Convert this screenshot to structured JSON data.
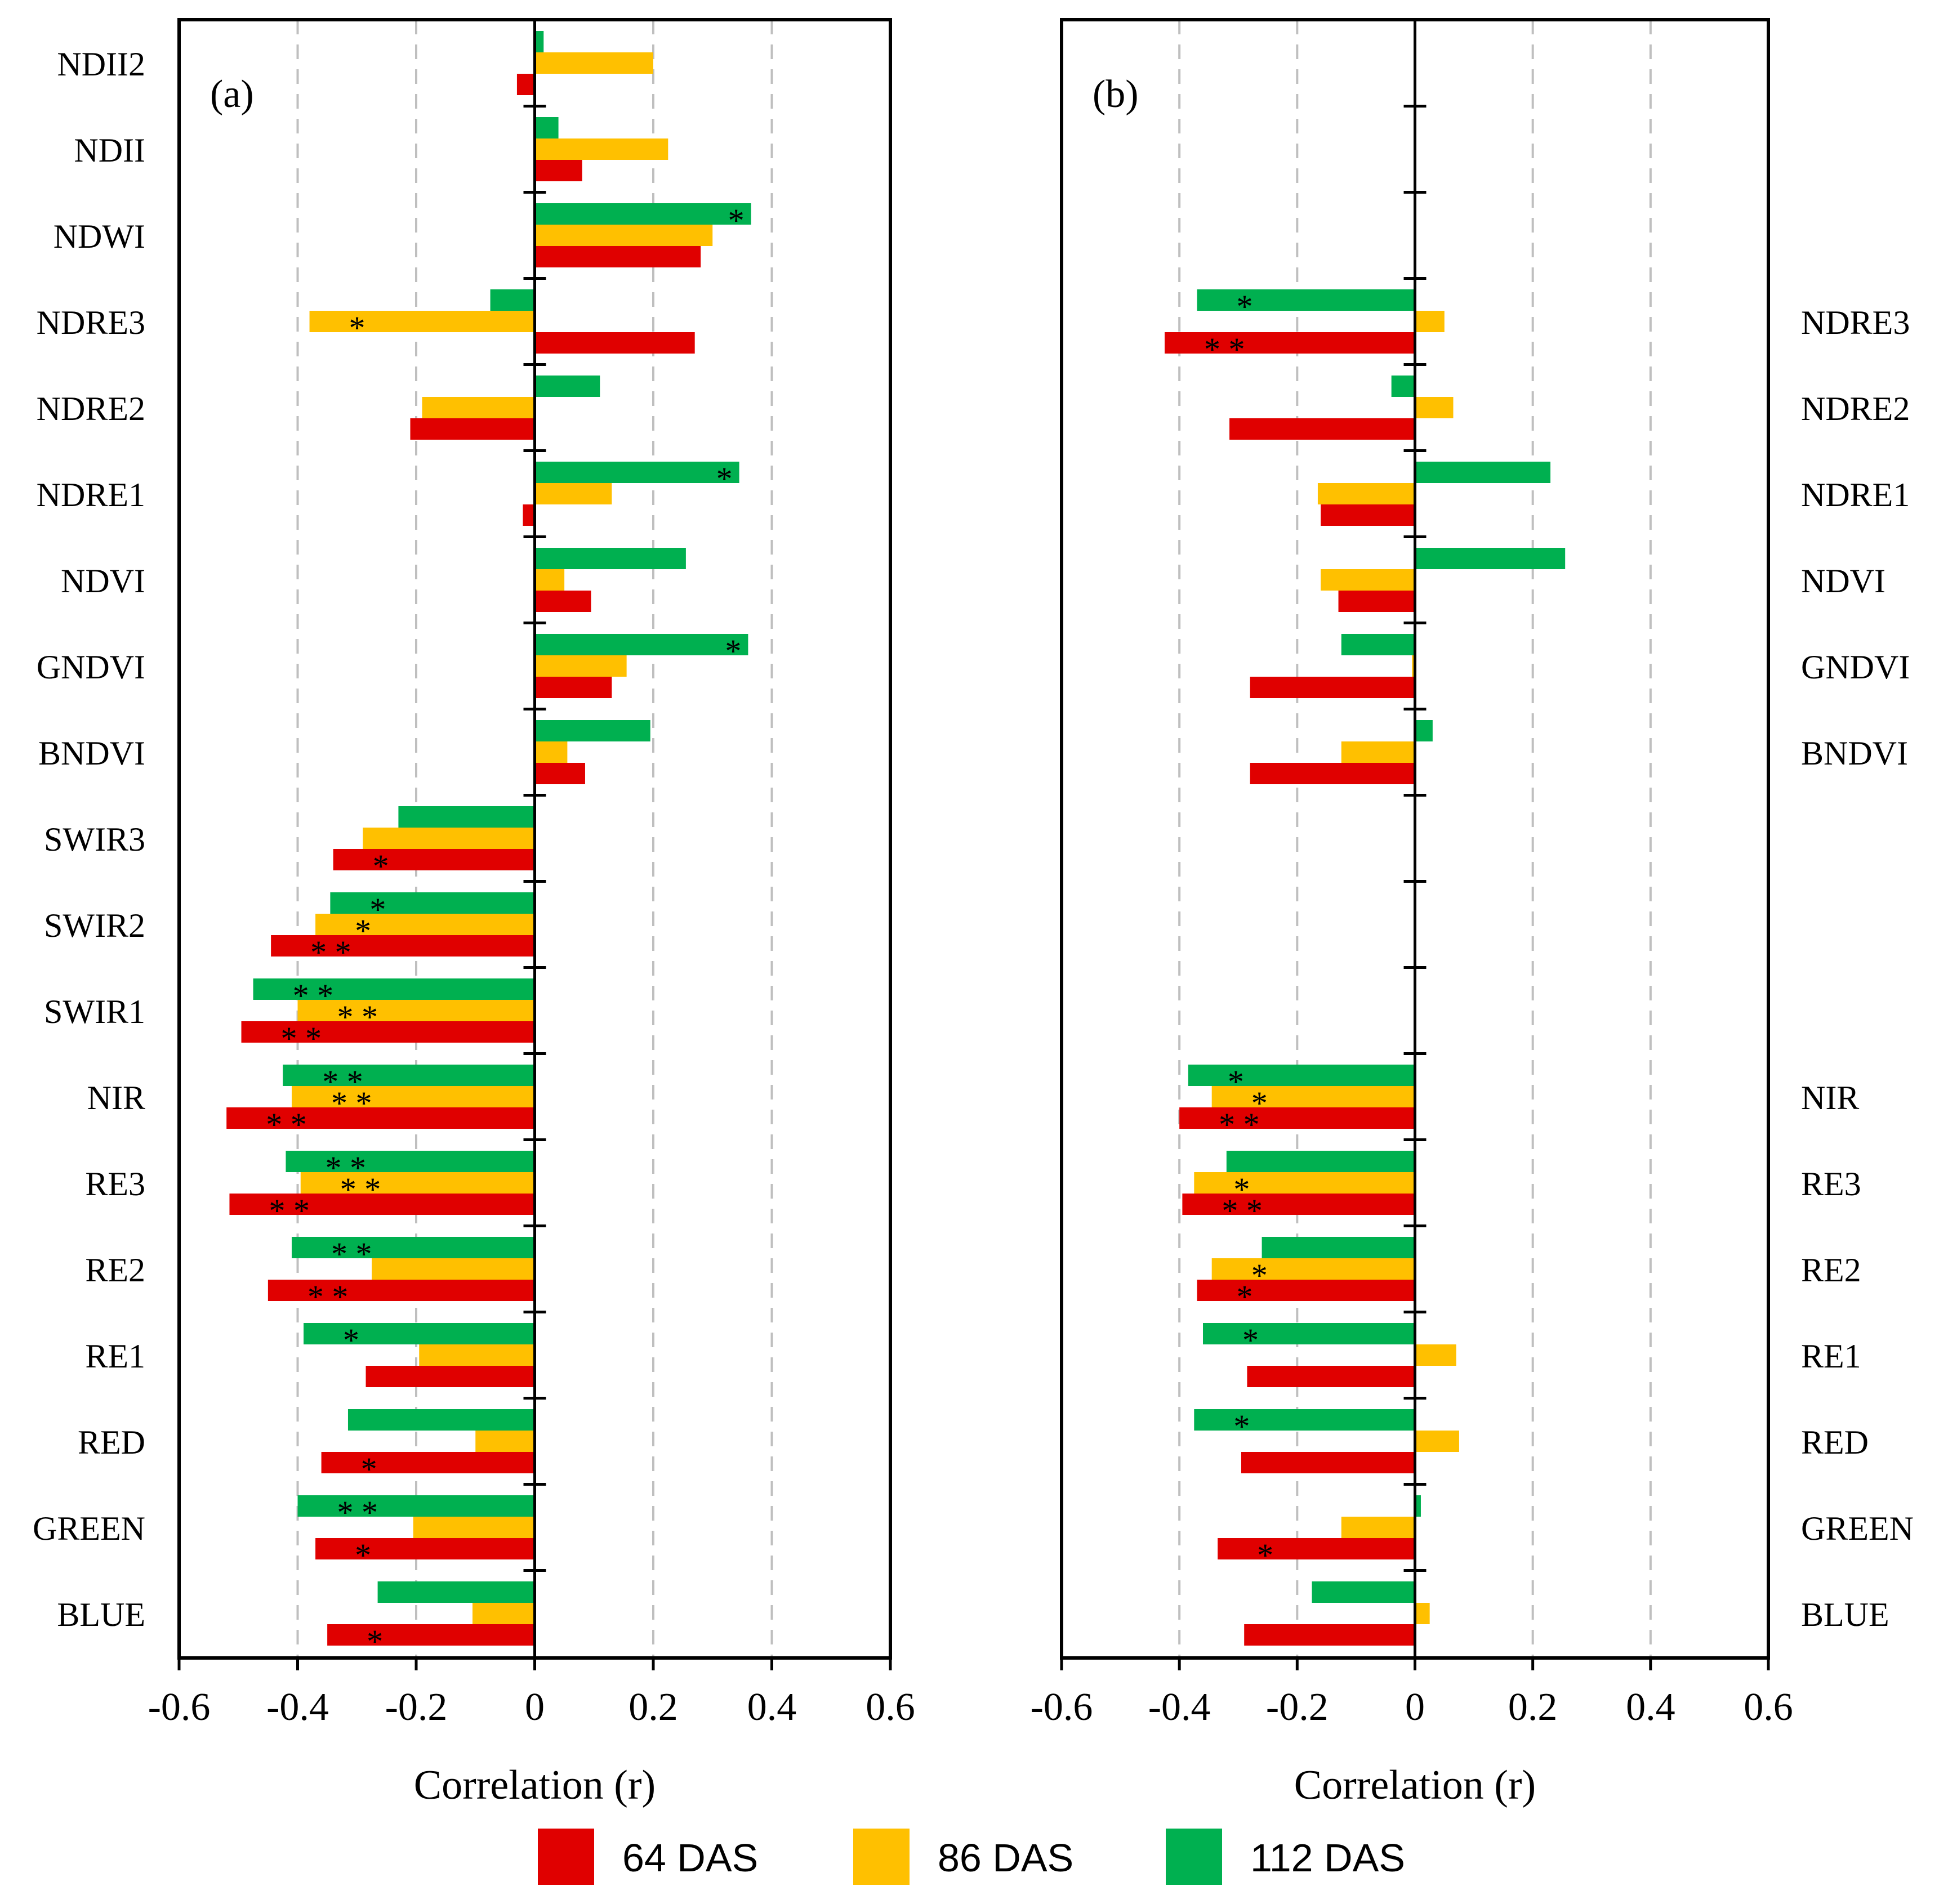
{
  "chart_data": [
    {
      "type": "bar",
      "orientation": "horizontal",
      "panel_label": "(a)",
      "xlabel": "Correlation (r)",
      "xlim": [
        -0.6,
        0.6
      ],
      "xticks": [
        "-0.6",
        "-0.4",
        "-0.2",
        "0",
        "0.2",
        "0.4",
        "0.6"
      ],
      "grid": "vertical dashed",
      "category_axis_side": "left",
      "categories": [
        "NDII2",
        "NDII",
        "NDWI",
        "NDRE3",
        "NDRE2",
        "NDRE1",
        "NDVI",
        "GNDVI",
        "BNDVI",
        "SWIR3",
        "SWIR2",
        "SWIR1",
        "NIR",
        "RE3",
        "RE2",
        "RE1",
        "RED",
        "GREEN",
        "BLUE"
      ],
      "series": [
        {
          "name": "64 DAS",
          "values": [
            -0.03,
            0.08,
            0.28,
            0.27,
            -0.21,
            -0.02,
            0.095,
            0.13,
            0.085,
            -0.34,
            -0.445,
            -0.495,
            -0.52,
            -0.515,
            -0.45,
            -0.285,
            -0.36,
            -0.37,
            -0.35
          ],
          "significance": [
            "",
            "",
            "",
            "",
            "",
            "",
            "",
            "",
            "",
            "*",
            "**",
            "**",
            "**",
            "**",
            "**",
            "",
            "*",
            "*",
            "*"
          ]
        },
        {
          "name": "86 DAS",
          "values": [
            0.2,
            0.225,
            0.3,
            -0.38,
            -0.19,
            0.13,
            0.05,
            0.155,
            0.055,
            -0.29,
            -0.37,
            -0.4,
            -0.41,
            -0.395,
            -0.275,
            -0.195,
            -0.1,
            -0.205,
            -0.105
          ],
          "significance": [
            "",
            "",
            "",
            "*",
            "",
            "",
            "",
            "",
            "",
            "",
            "*",
            "**",
            "**",
            "**",
            "",
            "",
            "",
            "",
            ""
          ]
        },
        {
          "name": "112 DAS",
          "values": [
            0.015,
            0.04,
            0.365,
            -0.075,
            0.11,
            0.345,
            0.255,
            0.36,
            0.195,
            -0.23,
            -0.345,
            -0.475,
            -0.425,
            -0.42,
            -0.41,
            -0.39,
            -0.315,
            -0.4,
            -0.265
          ],
          "significance": [
            "",
            "",
            "*",
            "",
            "",
            "*",
            "",
            "*",
            "",
            "",
            "*",
            "**",
            "**",
            "**",
            "**",
            "*",
            "",
            "**",
            ""
          ]
        }
      ]
    },
    {
      "type": "bar",
      "orientation": "horizontal",
      "panel_label": "(b)",
      "xlabel": "Correlation (r)",
      "xlim": [
        -0.6,
        0.6
      ],
      "xticks": [
        "-0.6",
        "-0.4",
        "-0.2",
        "0",
        "0.2",
        "0.4",
        "0.6"
      ],
      "grid": "vertical dashed",
      "category_axis_side": "right",
      "categories": [
        "NDII2",
        "NDII",
        "NDWI",
        "NDRE3",
        "NDRE2",
        "NDRE1",
        "NDVI",
        "GNDVI",
        "BNDVI",
        "SWIR3",
        "SWIR2",
        "SWIR1",
        "NIR",
        "RE3",
        "RE2",
        "RE1",
        "RED",
        "GREEN",
        "BLUE"
      ],
      "category_labels_shown": [
        "",
        "",
        "",
        "NDRE3",
        "NDRE2",
        "NDRE1",
        "NDVI",
        "GNDVI",
        "BNDVI",
        "",
        "",
        "",
        "NIR",
        "RE3",
        "RE2",
        "RE1",
        "RED",
        "GREEN",
        "BLUE"
      ],
      "series": [
        {
          "name": "64 DAS",
          "values": [
            null,
            null,
            null,
            -0.425,
            -0.315,
            -0.16,
            -0.13,
            -0.28,
            -0.28,
            null,
            null,
            null,
            -0.4,
            -0.395,
            -0.37,
            -0.285,
            -0.295,
            -0.335,
            -0.29
          ],
          "significance": [
            "",
            "",
            "",
            "**",
            "",
            "",
            "",
            "",
            "",
            "",
            "",
            "",
            "**",
            "**",
            "*",
            "",
            "",
            "*",
            ""
          ]
        },
        {
          "name": "86 DAS",
          "values": [
            null,
            null,
            null,
            0.05,
            0.065,
            -0.165,
            -0.16,
            -0.005,
            -0.125,
            null,
            null,
            null,
            -0.345,
            -0.375,
            -0.345,
            0.07,
            0.075,
            -0.125,
            0.025
          ],
          "significance": [
            "",
            "",
            "",
            "",
            "",
            "",
            "",
            "",
            "",
            "",
            "",
            "",
            "*",
            "*",
            "*",
            "",
            "",
            "",
            ""
          ]
        },
        {
          "name": "112 DAS",
          "values": [
            null,
            null,
            null,
            -0.37,
            -0.04,
            0.23,
            0.255,
            -0.125,
            0.03,
            null,
            null,
            null,
            -0.385,
            -0.32,
            -0.26,
            -0.36,
            -0.375,
            0.01,
            -0.175
          ],
          "significance": [
            "",
            "",
            "",
            "*",
            "",
            "",
            "",
            "",
            "",
            "",
            "",
            "",
            "*",
            "",
            "",
            "*",
            "*",
            "",
            ""
          ]
        }
      ]
    }
  ],
  "legend": {
    "placement": "bottom-center",
    "items": [
      {
        "label": "64 DAS",
        "color": "#e00000"
      },
      {
        "label": "86 DAS",
        "color": "#ffc000"
      },
      {
        "label": "112 DAS",
        "color": "#00b050"
      }
    ]
  },
  "colors": {
    "64 DAS": "#e00000",
    "86 DAS": "#ffc000",
    "112 DAS": "#00b050",
    "grid": "#bfbfbf",
    "axis": "#000000"
  }
}
